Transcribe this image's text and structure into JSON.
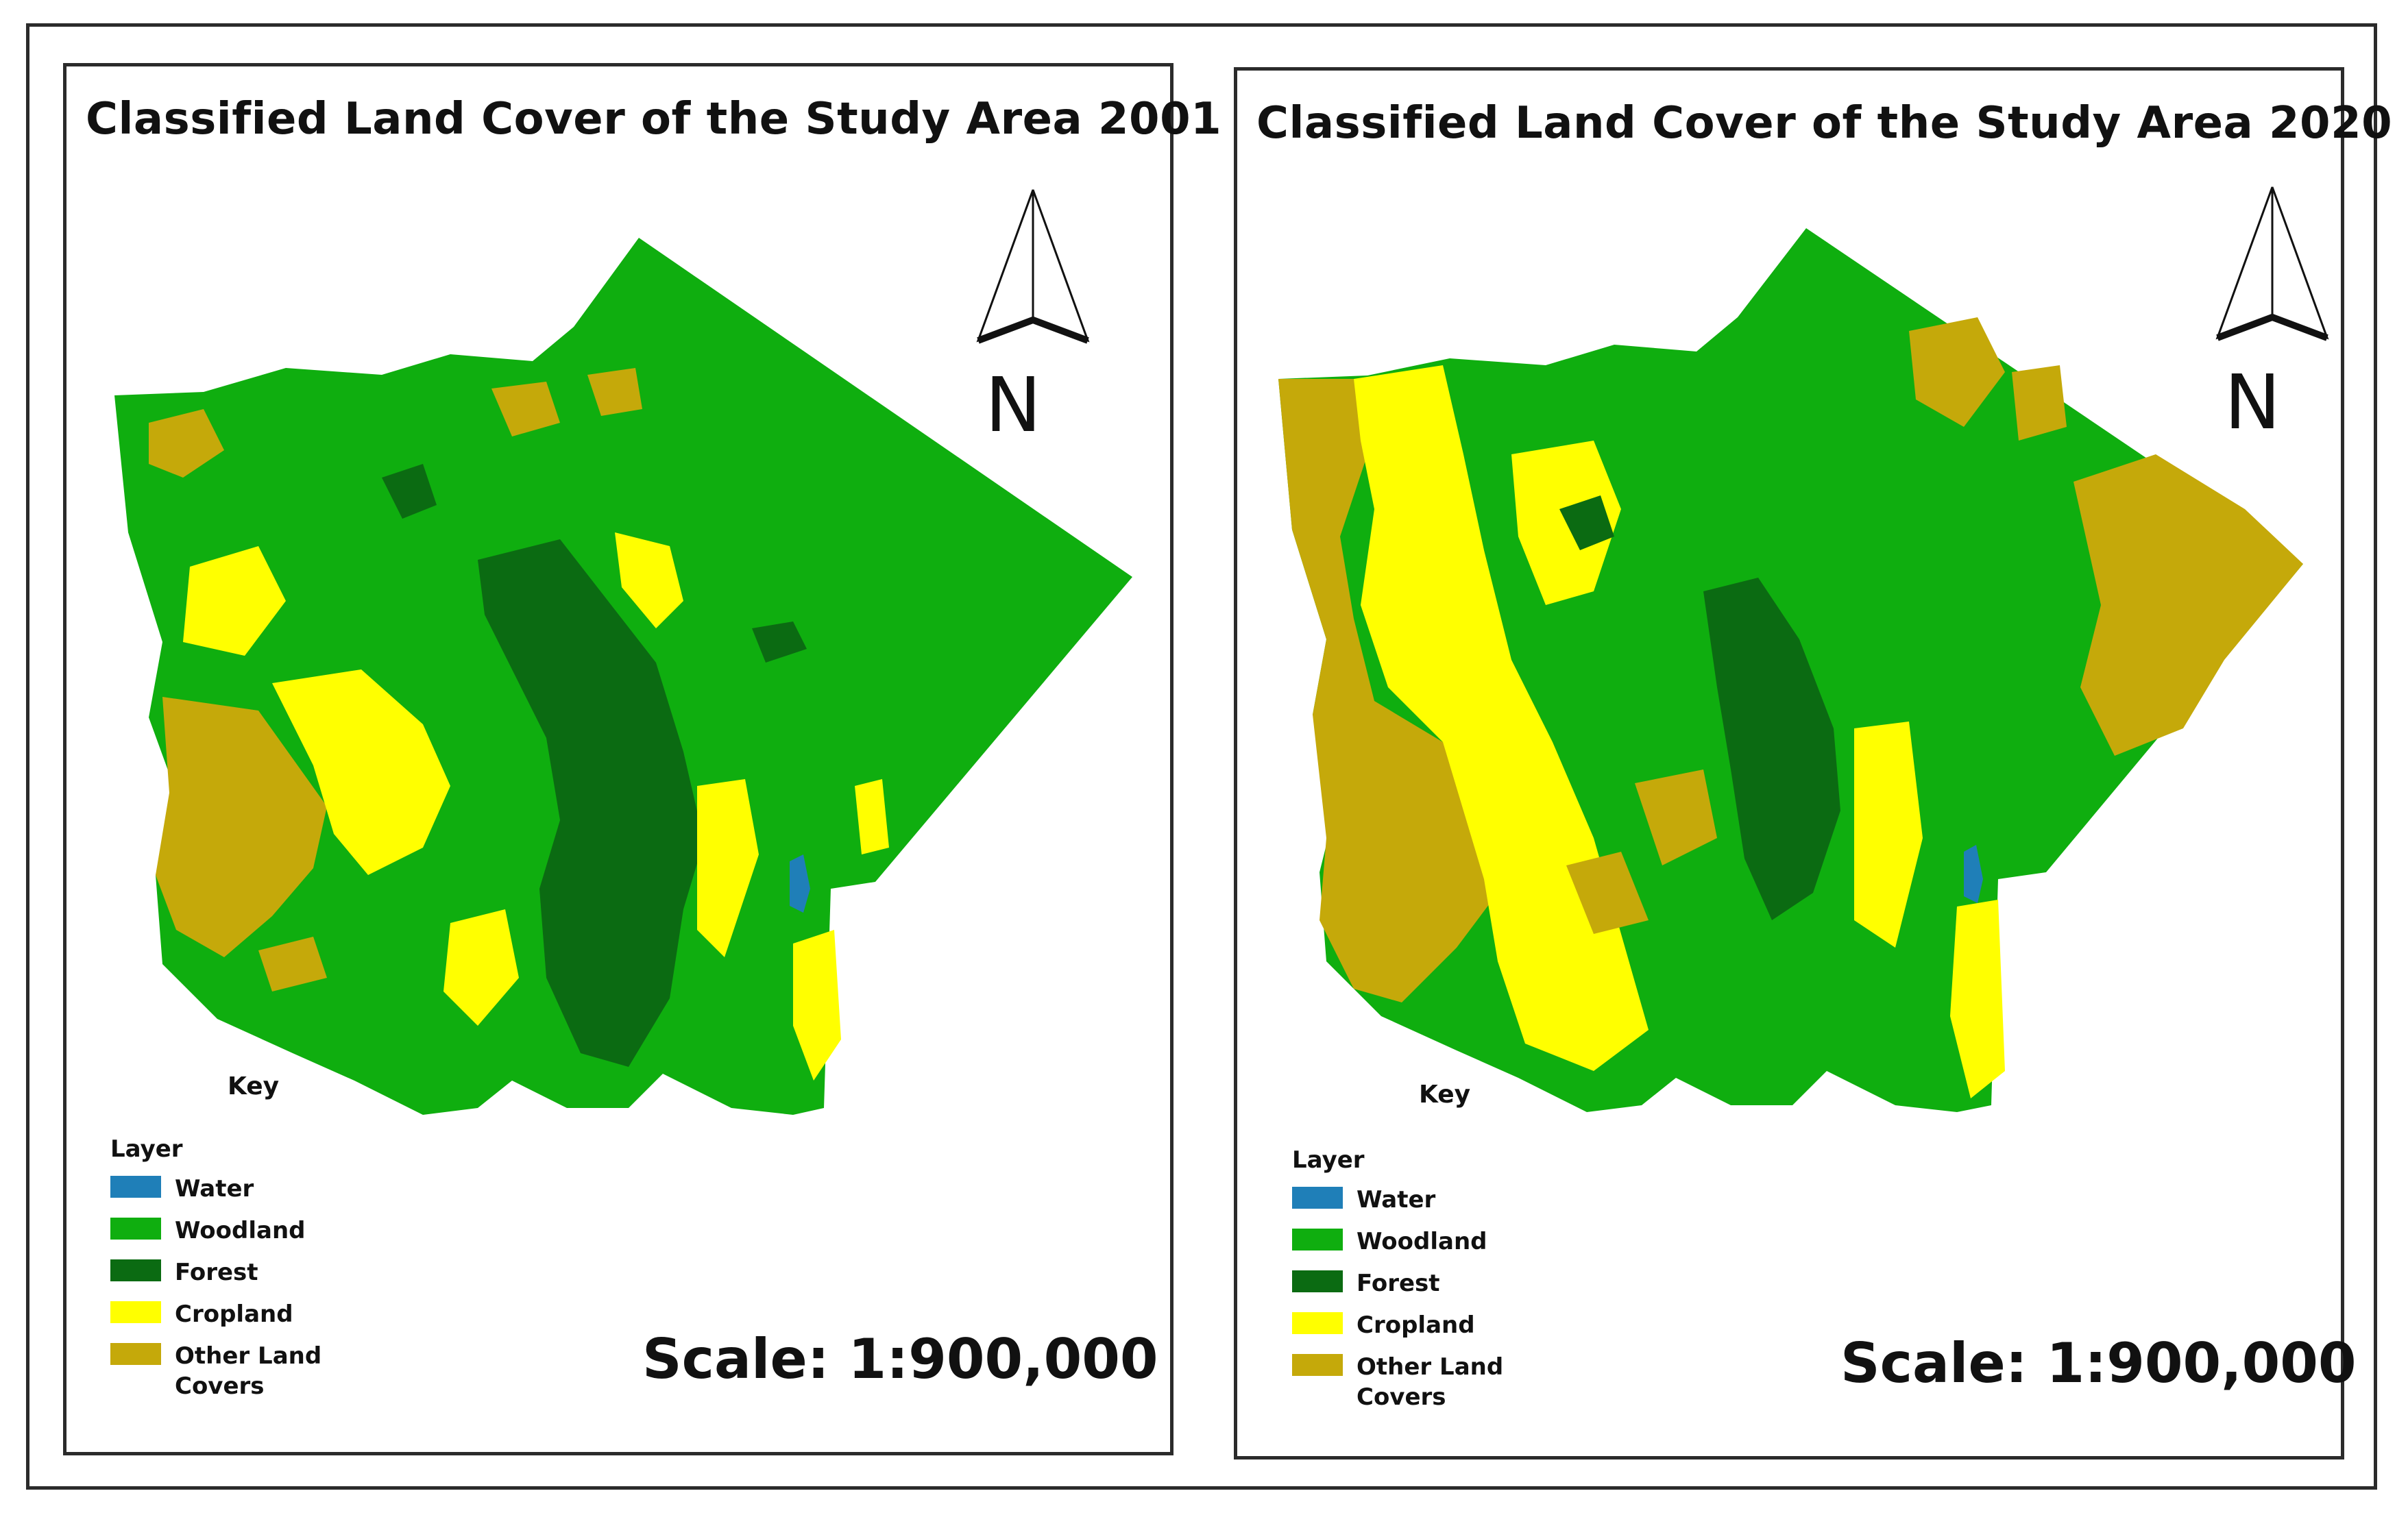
{
  "colors": {
    "water": "#1f7fb8",
    "woodland": "#0fae0f",
    "forest": "#0b6b12",
    "cropland": "#ffff00",
    "other": "#c5a90a"
  },
  "maps": [
    {
      "title": "Classified Land Cover of the Study Area 2001",
      "north_label": "N",
      "key_label": "Key",
      "legend_title": "Layer",
      "legend": [
        {
          "label": "Water",
          "color": "#1f7fb8"
        },
        {
          "label": "Woodland",
          "color": "#0fae0f"
        },
        {
          "label": "Forest",
          "color": "#0b6b12"
        },
        {
          "label": "Cropland",
          "color": "#ffff00"
        },
        {
          "label": "Other Land Covers",
          "color": "#c5a90a"
        }
      ],
      "scale": "Scale: 1:900,000"
    },
    {
      "title": "Classified Land Cover of the Study Area 2020",
      "north_label": "N",
      "key_label": "Key",
      "legend_title": "Layer",
      "legend": [
        {
          "label": "Water",
          "color": "#1f7fb8"
        },
        {
          "label": "Woodland",
          "color": "#0fae0f"
        },
        {
          "label": "Forest",
          "color": "#0b6b12"
        },
        {
          "label": "Cropland",
          "color": "#ffff00"
        },
        {
          "label": "Other Land Covers",
          "color": "#c5a90a"
        }
      ],
      "scale": "Scale: 1:900,000"
    }
  ]
}
